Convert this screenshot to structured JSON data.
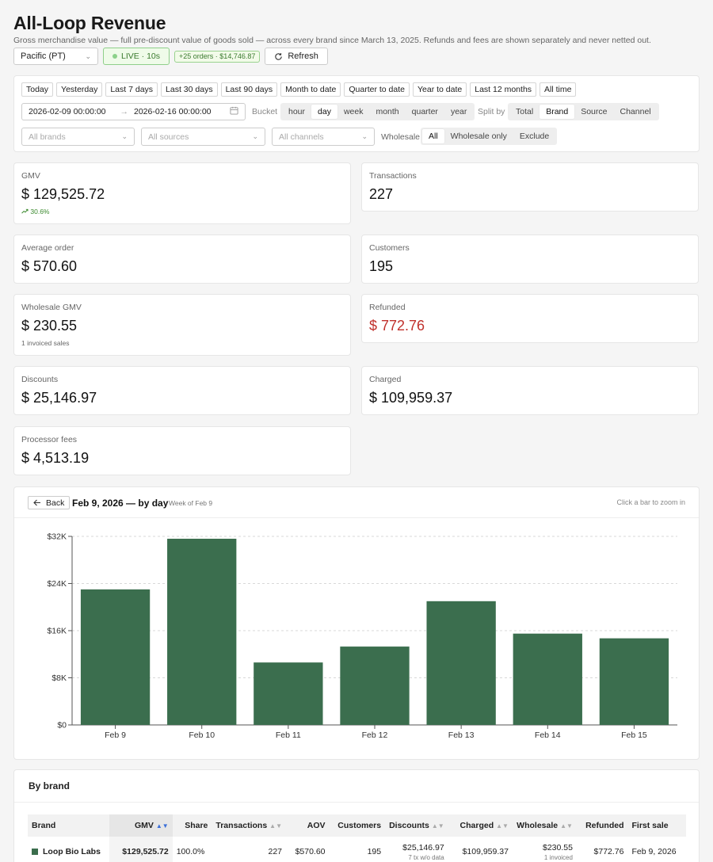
{
  "header": {
    "title": "All-Loop Revenue",
    "subtitle": "Gross merchandise value — full pre-discount value of goods sold — across every brand since March 13, 2025. Refunds and fees are shown separately and never netted out."
  },
  "toolbar": {
    "timezone": "Pacific (PT)",
    "live_label": "LIVE · 10s",
    "orders_badge": "+25 orders · $14,746.87",
    "refresh_label": "Refresh"
  },
  "filters": {
    "presets": [
      "Today",
      "Yesterday",
      "Last 7 days",
      "Last 30 days",
      "Last 90 days",
      "Month to date",
      "Quarter to date",
      "Year to date",
      "Last 12 months",
      "All time"
    ],
    "date_from": "2026-02-09 00:00:00",
    "date_to": "2026-02-16 00:00:00",
    "bucket_label": "Bucket",
    "bucket_options": [
      "hour",
      "day",
      "week",
      "month",
      "quarter",
      "year"
    ],
    "bucket_selected": "day",
    "split_label": "Split by",
    "split_options": [
      "Total",
      "Brand",
      "Source",
      "Channel"
    ],
    "split_selected": "Brand",
    "brands_placeholder": "All brands",
    "sources_placeholder": "All sources",
    "channels_placeholder": "All channels",
    "wholesale_label": "Wholesale",
    "wholesale_options": [
      "All",
      "Wholesale only",
      "Exclude"
    ],
    "wholesale_selected": "All"
  },
  "metrics": {
    "gmv": {
      "label": "GMV",
      "value": "$ 129,525.72",
      "trend": "30.6%"
    },
    "transactions": {
      "label": "Transactions",
      "value": "227"
    },
    "avg_order": {
      "label": "Average order",
      "value": "$ 570.60"
    },
    "customers": {
      "label": "Customers",
      "value": "195"
    },
    "wholesale_gmv": {
      "label": "Wholesale GMV",
      "value": "$ 230.55",
      "sub": "1 invoiced sales"
    },
    "refunded": {
      "label": "Refunded",
      "value": "$ 772.76"
    },
    "discounts": {
      "label": "Discounts",
      "value": "$ 25,146.97"
    },
    "charged": {
      "label": "Charged",
      "value": "$ 109,959.37"
    },
    "processor_fees": {
      "label": "Processor fees",
      "value": "$ 4,513.19"
    }
  },
  "chart": {
    "back_label": "Back",
    "title": "Feb 9, 2026 — by day",
    "week_label": "Week of Feb 9",
    "hint": "Click a bar to zoom in"
  },
  "chart_data": {
    "type": "bar",
    "categories": [
      "Feb 9",
      "Feb 10",
      "Feb 11",
      "Feb 12",
      "Feb 13",
      "Feb 14",
      "Feb 15"
    ],
    "values": [
      23000,
      31600,
      10600,
      13300,
      21000,
      15500,
      14700
    ],
    "yticks": [
      "$0",
      "$8K",
      "$16K",
      "$24K",
      "$32K"
    ],
    "ylim": [
      0,
      32000
    ],
    "grid": true,
    "bar_color": "#3b6e4e"
  },
  "by_brand": {
    "title": "By brand",
    "columns": [
      "Brand",
      "GMV",
      "Share",
      "Transactions",
      "AOV",
      "Customers",
      "Discounts",
      "Charged",
      "Wholesale",
      "Refunded",
      "First sale"
    ],
    "rows": [
      {
        "brand": "Loop Bio Labs",
        "gmv": "$129,525.72",
        "share": "100.0%",
        "transactions": "227",
        "aov": "$570.60",
        "customers": "195",
        "discounts": "$25,146.97",
        "discounts_note": "7 tx w/o data",
        "charged": "$109,959.37",
        "wholesale": "$230.55",
        "wholesale_note": "1 invoiced",
        "refunded": "$772.76",
        "first_sale": "Feb 9, 2026"
      }
    ]
  },
  "colors": {
    "accent_green": "#3b6e4e",
    "live_green": "#3a7a2e",
    "refund_red": "#c0302b",
    "sort_blue": "#3b6fd8"
  }
}
